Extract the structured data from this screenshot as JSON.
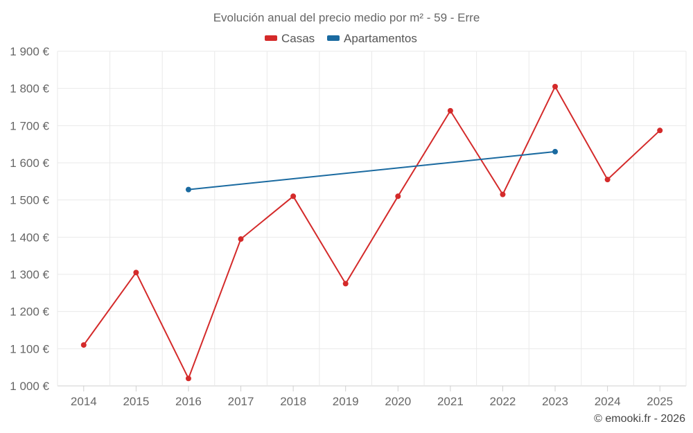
{
  "chart_data": {
    "type": "line",
    "title": "Evolución anual del precio medio por m² - 59 - Erre",
    "categories": [
      "2014",
      "2015",
      "2016",
      "2017",
      "2018",
      "2019",
      "2020",
      "2021",
      "2022",
      "2023",
      "2024",
      "2025"
    ],
    "series": [
      {
        "name": "Casas",
        "color": "#d42a2a",
        "values": [
          1110,
          1305,
          1020,
          1395,
          1510,
          1275,
          1510,
          1740,
          1515,
          1805,
          1555,
          1687
        ]
      },
      {
        "name": "Apartamentos",
        "color": "#1a6aa0",
        "values": [
          null,
          null,
          1528,
          null,
          null,
          null,
          null,
          null,
          null,
          1630,
          null,
          null
        ]
      }
    ],
    "ylim": [
      1000,
      1900
    ],
    "yticks": [
      1000,
      1100,
      1200,
      1300,
      1400,
      1500,
      1600,
      1700,
      1800,
      1900
    ],
    "ytick_labels": [
      "1 000 €",
      "1 100 €",
      "1 200 €",
      "1 300 €",
      "1 400 €",
      "1 500 €",
      "1 600 €",
      "1 700 €",
      "1 800 €",
      "1 900 €"
    ],
    "xlabel": "",
    "ylabel": "",
    "grid": true,
    "legend_position": "top-center"
  },
  "credit": "© emooki.fr - 2026"
}
